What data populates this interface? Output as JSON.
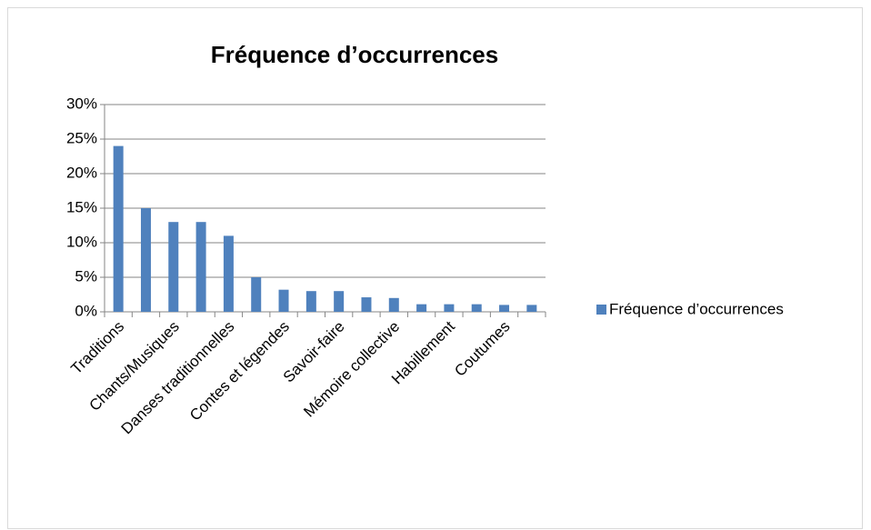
{
  "chart_data": {
    "type": "bar",
    "title": "Fréquence d’occurrences",
    "categories": [
      "Traditions",
      null,
      "Chants/Musiques",
      null,
      "Danses traditionnelles",
      null,
      "Contes et légendes",
      null,
      "Savoir-faire",
      null,
      "Mémoire collective",
      null,
      "Habillement",
      null,
      "Coutumes",
      null
    ],
    "series": [
      {
        "name": "Fréquence d’occurrences",
        "color": "#4f81bd",
        "values": [
          24,
          15,
          13,
          13,
          11,
          5,
          3.2,
          3,
          3,
          2.1,
          2,
          1.1,
          1.1,
          1.1,
          1,
          1
        ]
      }
    ],
    "ylim": [
      0,
      30
    ],
    "yticks": [
      {
        "value": 0,
        "label": "0%"
      },
      {
        "value": 5,
        "label": "5%"
      },
      {
        "value": 10,
        "label": "10%"
      },
      {
        "value": 15,
        "label": "15%"
      },
      {
        "value": 20,
        "label": "20%"
      },
      {
        "value": 25,
        "label": "25%"
      },
      {
        "value": 30,
        "label": "30%"
      }
    ],
    "grid": true,
    "legend": "right"
  }
}
